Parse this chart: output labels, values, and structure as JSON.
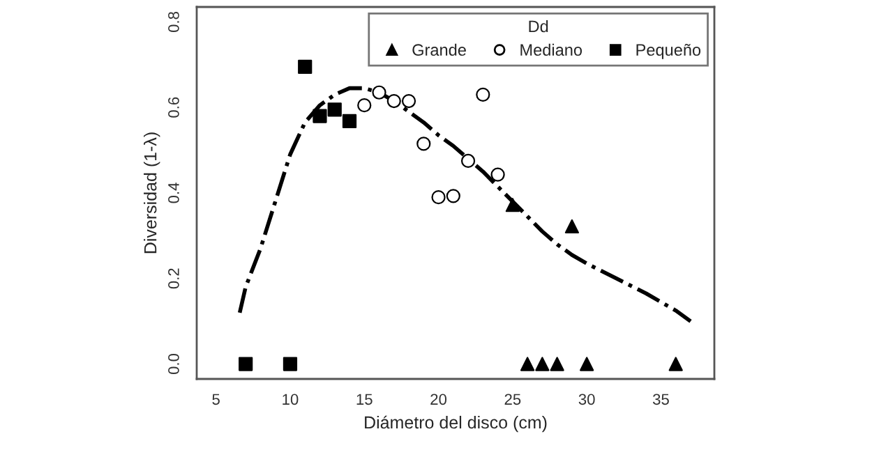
{
  "chart_data": {
    "type": "scatter",
    "xlabel": "Diámetro del disco (cm)",
    "ylabel": "Diversidad (1-λ)",
    "legend_title": "Dd",
    "legend": "top right",
    "grid": false,
    "xlim": [
      3.7,
      38.6
    ],
    "ylim": [
      -0.035,
      0.835
    ],
    "xticks": [
      5,
      10,
      15,
      20,
      25,
      30,
      35
    ],
    "yticks": [
      {
        "value": 0,
        "label": "0.0"
      },
      0.2,
      0.4,
      0.6,
      0.8
    ],
    "series": [
      {
        "name": "Grande",
        "marker": "triangle",
        "color": "#000000",
        "x": [
          25,
          29,
          26,
          27,
          28,
          30,
          36
        ],
        "values": [
          0.372,
          0.322,
          0,
          0,
          0,
          0,
          0
        ]
      },
      {
        "name": "Mediano",
        "marker": "circle",
        "color": "#ffffff",
        "x": [
          15,
          16,
          17,
          18,
          19,
          20,
          21,
          22,
          23,
          24
        ],
        "values": [
          0.605,
          0.635,
          0.615,
          0.615,
          0.515,
          0.39,
          0.393,
          0.475,
          0.63,
          0.443
        ]
      },
      {
        "name": "Pequeño",
        "marker": "square",
        "color": "#000000",
        "x": [
          7,
          10,
          11,
          12,
          13,
          14
        ],
        "values": [
          0,
          0,
          0.695,
          0.58,
          0.595,
          0.568
        ]
      },
      {
        "type": "line",
        "line_style": "dashdot",
        "color": "#000000",
        "x": [
          6.6,
          7,
          8,
          9,
          10,
          11,
          12,
          13,
          14,
          15,
          16,
          17,
          18,
          19,
          20,
          21,
          22,
          23,
          24,
          25,
          26,
          27,
          28,
          29,
          30,
          32,
          34,
          36,
          37
        ],
        "values": [
          0.12,
          0.18,
          0.27,
          0.38,
          0.49,
          0.565,
          0.605,
          0.63,
          0.645,
          0.645,
          0.635,
          0.615,
          0.59,
          0.565,
          0.535,
          0.51,
          0.48,
          0.45,
          0.415,
          0.38,
          0.345,
          0.31,
          0.28,
          0.255,
          0.235,
          0.2,
          0.165,
          0.125,
          0.1
        ]
      }
    ]
  }
}
